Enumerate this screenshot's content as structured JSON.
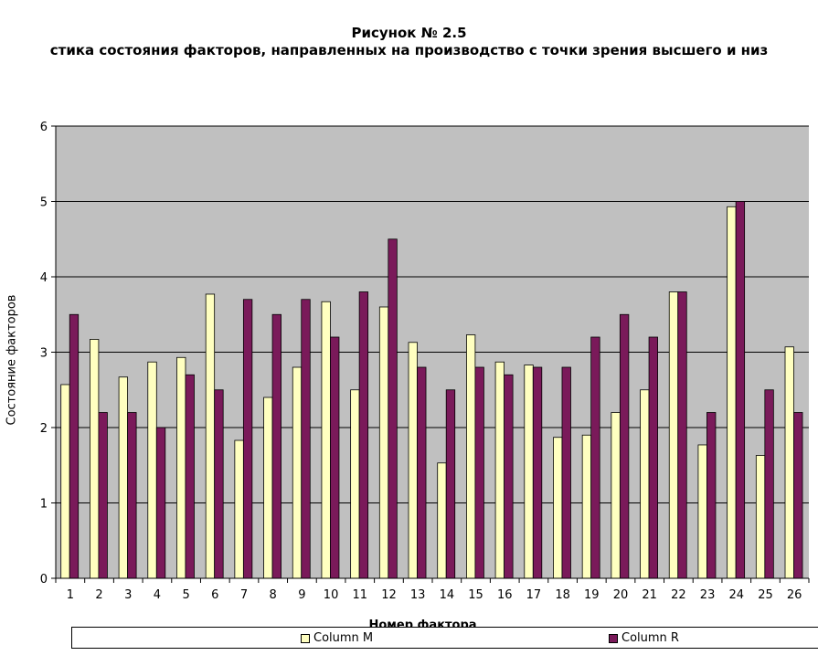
{
  "chart_data": {
    "type": "bar",
    "title": "Рисунок № 2.5",
    "subtitle": "стика состояния факторов, направленных на производство с точки зрения высшего и низ",
    "xlabel": "Номер фактора",
    "ylabel": "Состояние факторов",
    "ylim": [
      0,
      6
    ],
    "yticks": [
      "0",
      "1",
      "2",
      "3",
      "4",
      "5",
      "6"
    ],
    "grid": true,
    "legend_position": "bottom",
    "categories": [
      "1",
      "2",
      "3",
      "4",
      "5",
      "6",
      "7",
      "8",
      "9",
      "10",
      "11",
      "12",
      "13",
      "14",
      "15",
      "16",
      "17",
      "18",
      "19",
      "20",
      "21",
      "22",
      "23",
      "24",
      "25",
      "26"
    ],
    "series": [
      {
        "name": "Column M",
        "color": "#ffffc0",
        "values": [
          2.57,
          3.17,
          2.67,
          2.87,
          2.93,
          3.77,
          1.83,
          2.4,
          2.8,
          3.67,
          2.5,
          3.6,
          3.13,
          1.53,
          3.23,
          2.87,
          2.83,
          1.87,
          1.9,
          2.2,
          2.5,
          3.8,
          1.77,
          4.93,
          1.63,
          3.07
        ]
      },
      {
        "name": "Column R",
        "color": "#7a1a5a",
        "values": [
          3.5,
          2.2,
          2.2,
          2.0,
          2.7,
          2.5,
          3.7,
          3.5,
          3.7,
          3.2,
          3.8,
          4.5,
          2.8,
          2.5,
          2.8,
          2.7,
          2.8,
          2.8,
          3.2,
          3.5,
          3.2,
          3.8,
          2.2,
          5.0,
          2.5,
          2.2
        ]
      }
    ]
  }
}
